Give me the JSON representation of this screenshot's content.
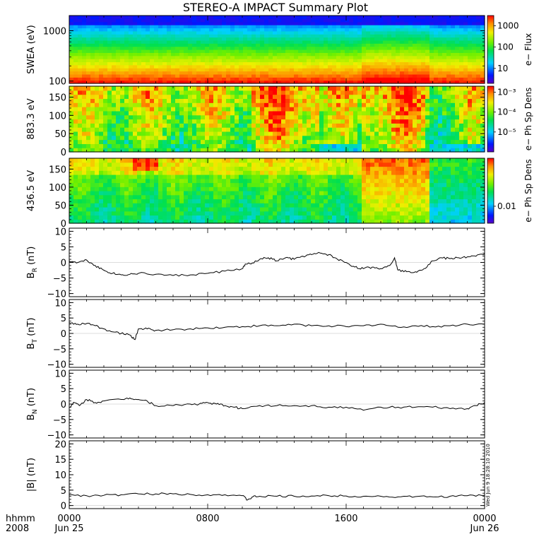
{
  "title": "STEREO-A IMPACT Summary Plot",
  "time_axis": {
    "ticks": [
      {
        "hour": 0,
        "label": "0000",
        "sub": "Jun 25"
      },
      {
        "hour": 8,
        "label": "0800",
        "sub": ""
      },
      {
        "hour": 16,
        "label": "1600",
        "sub": ""
      },
      {
        "hour": 24,
        "label": "0000",
        "sub": "Jun 26"
      }
    ],
    "left_label_1": "hhmm",
    "left_label_2": "2008",
    "range_hours": [
      0,
      24
    ]
  },
  "stamp": "Wed Jun 9 18:28:10 2010",
  "chart_data": [
    {
      "type": "heatmap",
      "panel": "swea",
      "ylabel": "SWEA (eV)",
      "yscale": "log",
      "yrange": [
        90,
        2000
      ],
      "yticks": [
        {
          "v": 100,
          "label": "100"
        },
        {
          "v": 1000,
          "label": "1000"
        }
      ],
      "colorbar": {
        "label": "e− Flux",
        "scale": "log",
        "range": [
          2,
          3000
        ],
        "ticks": [
          {
            "v": 10,
            "label": "10"
          },
          {
            "v": 100,
            "label": "100"
          },
          {
            "v": 1000,
            "label": "1000"
          }
        ]
      },
      "enhanced_interval_hours": [
        17.0,
        20.7
      ]
    },
    {
      "type": "heatmap",
      "panel": "pad_883",
      "ylabel": "883.3 eV",
      "yscale": "linear",
      "yrange": [
        0,
        180
      ],
      "yticks": [
        {
          "v": 0,
          "label": "0"
        },
        {
          "v": 50,
          "label": "50"
        },
        {
          "v": 100,
          "label": "100"
        },
        {
          "v": 150,
          "label": "150"
        }
      ],
      "colorbar": {
        "label": "e− Ph Sp Dens",
        "scale": "log",
        "range": [
          1e-06,
          0.002
        ],
        "ticks": [
          {
            "v": 1e-05,
            "label": "10⁻⁵"
          },
          {
            "v": 0.0001,
            "label": "10⁻⁴"
          },
          {
            "v": 0.001,
            "label": "10⁻³"
          }
        ]
      }
    },
    {
      "type": "heatmap",
      "panel": "pad_436",
      "ylabel": "436.5 eV",
      "yscale": "linear",
      "yrange": [
        0,
        180
      ],
      "yticks": [
        {
          "v": 0,
          "label": "0"
        },
        {
          "v": 50,
          "label": "50"
        },
        {
          "v": 100,
          "label": "100"
        },
        {
          "v": 150,
          "label": "150"
        }
      ],
      "colorbar": {
        "label": "e− Ph Sp Dens",
        "scale": "log",
        "range": [
          0.003,
          0.3
        ],
        "ticks": [
          {
            "v": 0.01,
            "label": "0.01"
          }
        ]
      }
    },
    {
      "type": "line",
      "panel": "br",
      "ylabel": "B",
      "ylabel_sub": "R",
      "ylabel_unit": " (nT)",
      "ylim": [
        -11,
        11
      ],
      "yticks": [
        {
          "v": -10,
          "label": "−10"
        },
        {
          "v": -5,
          "label": "−5"
        },
        {
          "v": 0,
          "label": "0"
        },
        {
          "v": 5,
          "label": "5"
        },
        {
          "v": 10,
          "label": "10"
        }
      ],
      "x": [
        0,
        0.5,
        1,
        1.5,
        2,
        2.5,
        3,
        3.5,
        4,
        5,
        6,
        7,
        8,
        9,
        10,
        10.2,
        10.5,
        11,
        11.5,
        12,
        12.5,
        13,
        13.5,
        14,
        14.5,
        15,
        15.5,
        16,
        16.5,
        17,
        17.5,
        18,
        18.5,
        18.8,
        19,
        19.5,
        20,
        20.5,
        21,
        21.5,
        22,
        22.5,
        23,
        23.5,
        24
      ],
      "y": [
        0.5,
        0,
        0.8,
        -1,
        -2.5,
        -3.5,
        -4,
        -3.8,
        -3.5,
        -3.8,
        -4.2,
        -4,
        -3.5,
        -2.8,
        -2,
        -0.5,
        -0.5,
        1,
        1.5,
        0.5,
        1.5,
        1,
        2,
        2.5,
        3,
        2.5,
        1,
        0,
        -1.5,
        -2,
        -1.5,
        -2,
        -1,
        1.5,
        -2.5,
        -3,
        -3,
        -2,
        0.5,
        1.5,
        1.2,
        1.5,
        1.8,
        2,
        2.8
      ]
    },
    {
      "type": "line",
      "panel": "bt",
      "ylabel": "B",
      "ylabel_sub": "T",
      "ylabel_unit": " (nT)",
      "ylim": [
        -11,
        11
      ],
      "yticks": [
        {
          "v": -10,
          "label": "−10"
        },
        {
          "v": -5,
          "label": "−5"
        },
        {
          "v": 0,
          "label": "0"
        },
        {
          "v": 5,
          "label": "5"
        },
        {
          "v": 10,
          "label": "10"
        }
      ],
      "x": [
        0,
        0.5,
        1,
        1.5,
        2,
        2.5,
        3,
        3.5,
        3.8,
        4,
        4.5,
        5,
        6,
        7,
        8,
        9,
        10,
        11,
        12,
        13,
        14,
        15,
        16,
        17,
        18,
        19,
        20,
        21,
        22,
        23,
        24
      ],
      "y": [
        3.5,
        3,
        3.2,
        2.5,
        1.5,
        0.5,
        0,
        -0.5,
        -2,
        1.5,
        1.5,
        1,
        1.2,
        1.5,
        1.8,
        2,
        2.2,
        2.5,
        2.5,
        3,
        2.5,
        2.5,
        2.2,
        2.5,
        3,
        2,
        2.5,
        2.2,
        2.5,
        3,
        3
      ]
    },
    {
      "type": "line",
      "panel": "bn",
      "ylabel": "B",
      "ylabel_sub": "N",
      "ylabel_unit": " (nT)",
      "ylim": [
        -11,
        11
      ],
      "yticks": [
        {
          "v": -10,
          "label": "−10"
        },
        {
          "v": -5,
          "label": "−5"
        },
        {
          "v": 0,
          "label": "0"
        },
        {
          "v": 5,
          "label": "5"
        },
        {
          "v": 10,
          "label": "10"
        }
      ],
      "x": [
        0,
        0.3,
        0.6,
        1,
        1.5,
        2,
        3,
        3.5,
        4,
        4.5,
        5,
        6,
        7,
        7.5,
        8,
        8.5,
        9,
        9.5,
        10,
        11,
        12,
        13,
        14,
        15,
        16,
        17,
        18,
        19,
        20,
        21,
        22,
        23,
        23.5,
        24
      ],
      "y": [
        -1,
        0.5,
        -0.5,
        1.5,
        0.5,
        1,
        1.5,
        2,
        1.5,
        1,
        -0.5,
        -0.5,
        0,
        0,
        0.5,
        0,
        -0.5,
        -1,
        -1.5,
        -0.5,
        -0.5,
        -0.5,
        -0.5,
        -1,
        -1,
        -2,
        -1,
        -1,
        -1,
        -1,
        -1.5,
        -1.5,
        -0.5,
        0.5
      ]
    },
    {
      "type": "line",
      "panel": "btot",
      "ylabel": "|B| (nT)",
      "ylim": [
        -1,
        21
      ],
      "yticks": [
        {
          "v": 0,
          "label": "0"
        },
        {
          "v": 5,
          "label": "5"
        },
        {
          "v": 10,
          "label": "10"
        },
        {
          "v": 15,
          "label": "15"
        },
        {
          "v": 20,
          "label": "20"
        }
      ],
      "x": [
        0,
        1,
        2,
        3,
        4,
        5,
        6,
        7,
        8,
        9,
        10,
        10.3,
        10.6,
        11,
        12,
        13,
        14,
        15,
        16,
        17,
        18,
        19,
        20,
        21,
        22,
        23,
        24
      ],
      "y": [
        3.5,
        3.2,
        3.3,
        3.5,
        3.8,
        3.8,
        3.8,
        3.6,
        3.5,
        3.5,
        3.2,
        1.8,
        2.8,
        3,
        3,
        3,
        3.1,
        3.2,
        3.1,
        3,
        3,
        2.8,
        2.9,
        2.8,
        3,
        3.2,
        3.3
      ]
    }
  ]
}
